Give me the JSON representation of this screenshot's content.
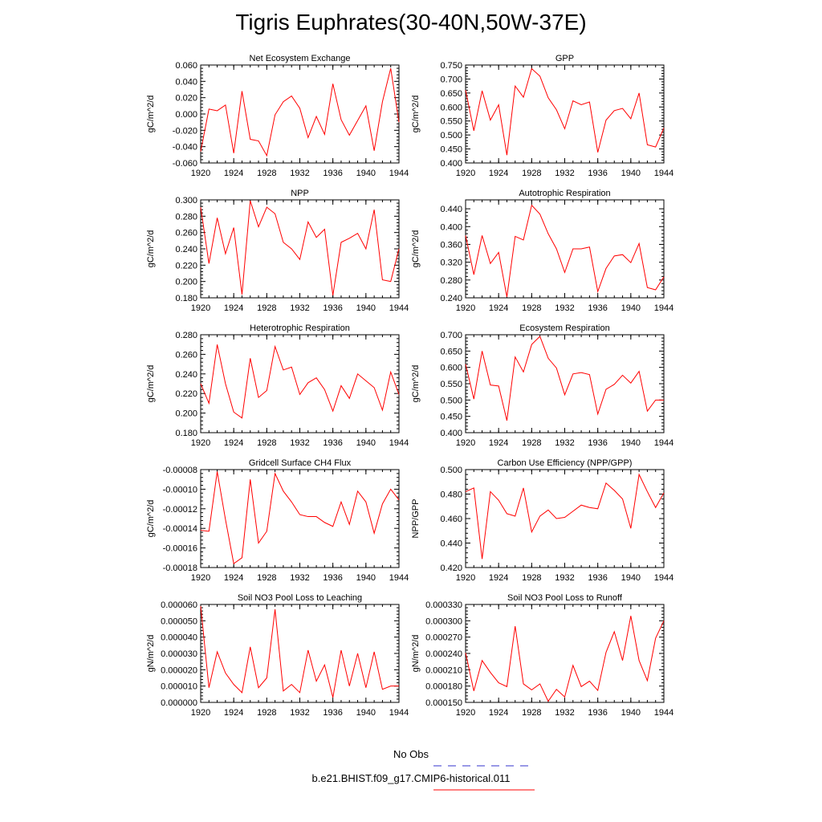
{
  "title": "Tigris Euphrates(30-40N,50W-37E)",
  "legend": {
    "obs_label": "No Obs",
    "obs_color": "#3333cc",
    "model_label": "b.e21.BHIST.f09_g17.CMIP6-historical.011",
    "model_color": "#ff0000"
  },
  "chart_data": [
    {
      "type": "line",
      "title": "Net Ecosystem Exchange",
      "ylabel": "gC/m^2/d",
      "xlim": [
        1920,
        1944
      ],
      "ylim": [
        -0.06,
        0.06
      ],
      "xticks": [
        "1920",
        "1924",
        "1928",
        "1932",
        "1936",
        "1940",
        "1944"
      ],
      "yticks": [
        "-0.060",
        "-0.040",
        "-0.020",
        "0.000",
        "0.020",
        "0.040",
        "0.060"
      ],
      "x": [
        1920,
        1921,
        1922,
        1923,
        1924,
        1925,
        1926,
        1927,
        1928,
        1929,
        1930,
        1931,
        1932,
        1933,
        1934,
        1935,
        1936,
        1937,
        1938,
        1939,
        1940,
        1941,
        1942,
        1943,
        1944
      ],
      "series": [
        {
          "values": [
            -0.046,
            0.006,
            0.004,
            0.011,
            -0.048,
            0.028,
            -0.031,
            -0.033,
            -0.051,
            -0.001,
            0.015,
            0.022,
            0.007,
            -0.029,
            -0.003,
            -0.025,
            0.037,
            -0.007,
            -0.026,
            -0.008,
            0.01,
            -0.045,
            0.015,
            0.056,
            -0.01
          ]
        }
      ]
    },
    {
      "type": "line",
      "title": "GPP",
      "ylabel": "gC/m^2/d",
      "xlim": [
        1920,
        1944
      ],
      "ylim": [
        0.4,
        0.75
      ],
      "xticks": [
        "1920",
        "1924",
        "1928",
        "1932",
        "1936",
        "1940",
        "1944"
      ],
      "yticks": [
        "0.400",
        "0.450",
        "0.500",
        "0.550",
        "0.600",
        "0.650",
        "0.700",
        "0.750"
      ],
      "x": [
        1920,
        1921,
        1922,
        1923,
        1924,
        1925,
        1926,
        1927,
        1928,
        1929,
        1930,
        1931,
        1932,
        1933,
        1934,
        1935,
        1936,
        1937,
        1938,
        1939,
        1940,
        1941,
        1942,
        1943,
        1944
      ],
      "series": [
        {
          "values": [
            0.66,
            0.515,
            0.658,
            0.553,
            0.608,
            0.428,
            0.675,
            0.635,
            0.737,
            0.71,
            0.633,
            0.59,
            0.522,
            0.622,
            0.608,
            0.618,
            0.438,
            0.553,
            0.587,
            0.595,
            0.558,
            0.65,
            0.465,
            0.457,
            0.525
          ]
        }
      ]
    },
    {
      "type": "line",
      "title": "NPP",
      "ylabel": "gC/m^2/d",
      "xlim": [
        1920,
        1944
      ],
      "ylim": [
        0.18,
        0.3
      ],
      "xticks": [
        "1920",
        "1924",
        "1928",
        "1932",
        "1936",
        "1940",
        "1944"
      ],
      "yticks": [
        "0.180",
        "0.200",
        "0.220",
        "0.240",
        "0.260",
        "0.280",
        "0.300"
      ],
      "x": [
        1920,
        1921,
        1922,
        1923,
        1924,
        1925,
        1926,
        1927,
        1928,
        1929,
        1930,
        1931,
        1932,
        1933,
        1934,
        1935,
        1936,
        1937,
        1938,
        1939,
        1940,
        1941,
        1942,
        1943,
        1944
      ],
      "series": [
        {
          "values": [
            0.291,
            0.222,
            0.278,
            0.234,
            0.266,
            0.184,
            0.299,
            0.267,
            0.291,
            0.283,
            0.248,
            0.24,
            0.227,
            0.273,
            0.254,
            0.264,
            0.183,
            0.248,
            0.253,
            0.259,
            0.24,
            0.288,
            0.202,
            0.2,
            0.24
          ]
        }
      ]
    },
    {
      "type": "line",
      "title": "Autotrophic Respiration",
      "ylabel": "gC/m^2/d",
      "xlim": [
        1920,
        1944
      ],
      "ylim": [
        0.24,
        0.46
      ],
      "xticks": [
        "1920",
        "1924",
        "1928",
        "1932",
        "1936",
        "1940",
        "1944"
      ],
      "yticks": [
        "0.240",
        "0.280",
        "0.320",
        "0.360",
        "0.400",
        "0.440"
      ],
      "x": [
        1920,
        1921,
        1922,
        1923,
        1924,
        1925,
        1926,
        1927,
        1928,
        1929,
        1930,
        1931,
        1932,
        1933,
        1934,
        1935,
        1936,
        1937,
        1938,
        1939,
        1940,
        1941,
        1942,
        1943,
        1944
      ],
      "series": [
        {
          "values": [
            0.38,
            0.292,
            0.38,
            0.317,
            0.342,
            0.242,
            0.378,
            0.37,
            0.448,
            0.428,
            0.384,
            0.35,
            0.297,
            0.35,
            0.35,
            0.354,
            0.254,
            0.306,
            0.334,
            0.337,
            0.319,
            0.362,
            0.263,
            0.258,
            0.287
          ]
        }
      ]
    },
    {
      "type": "line",
      "title": "Heterotrophic Respiration",
      "ylabel": "gC/m^2/d",
      "xlim": [
        1920,
        1944
      ],
      "ylim": [
        0.18,
        0.28
      ],
      "xticks": [
        "1920",
        "1924",
        "1928",
        "1932",
        "1936",
        "1940",
        "1944"
      ],
      "yticks": [
        "0.180",
        "0.200",
        "0.220",
        "0.240",
        "0.260",
        "0.280"
      ],
      "x": [
        1920,
        1921,
        1922,
        1923,
        1924,
        1925,
        1926,
        1927,
        1928,
        1929,
        1930,
        1931,
        1932,
        1933,
        1934,
        1935,
        1936,
        1937,
        1938,
        1939,
        1940,
        1941,
        1942,
        1943,
        1944
      ],
      "series": [
        {
          "values": [
            0.23,
            0.21,
            0.27,
            0.23,
            0.201,
            0.195,
            0.256,
            0.216,
            0.223,
            0.268,
            0.244,
            0.247,
            0.219,
            0.231,
            0.236,
            0.224,
            0.202,
            0.228,
            0.215,
            0.24,
            0.233,
            0.226,
            0.203,
            0.242,
            0.219
          ]
        }
      ]
    },
    {
      "type": "line",
      "title": "Ecosystem Respiration",
      "ylabel": "gC/m^2/d",
      "xlim": [
        1920,
        1944
      ],
      "ylim": [
        0.4,
        0.7
      ],
      "xticks": [
        "1920",
        "1924",
        "1928",
        "1932",
        "1936",
        "1940",
        "1944"
      ],
      "yticks": [
        "0.400",
        "0.450",
        "0.500",
        "0.550",
        "0.600",
        "0.650",
        "0.700"
      ],
      "x": [
        1920,
        1921,
        1922,
        1923,
        1924,
        1925,
        1926,
        1927,
        1928,
        1929,
        1930,
        1931,
        1932,
        1933,
        1934,
        1935,
        1936,
        1937,
        1938,
        1939,
        1940,
        1941,
        1942,
        1943,
        1944
      ],
      "series": [
        {
          "values": [
            0.61,
            0.503,
            0.65,
            0.546,
            0.543,
            0.437,
            0.632,
            0.586,
            0.67,
            0.695,
            0.628,
            0.598,
            0.516,
            0.58,
            0.584,
            0.578,
            0.457,
            0.533,
            0.548,
            0.576,
            0.552,
            0.588,
            0.466,
            0.5,
            0.5
          ]
        }
      ]
    },
    {
      "type": "line",
      "title": "Gridcell Surface CH4 Flux",
      "ylabel": "gC/m^2/d",
      "xlim": [
        1920,
        1944
      ],
      "ylim": [
        -0.00018,
        -8e-05
      ],
      "xticks": [
        "1920",
        "1924",
        "1928",
        "1932",
        "1936",
        "1940",
        "1944"
      ],
      "yticks": [
        "-0.00018",
        "-0.00016",
        "-0.00014",
        "-0.00012",
        "-0.00010",
        "-0.00008"
      ],
      "x": [
        1920,
        1921,
        1922,
        1923,
        1924,
        1925,
        1926,
        1927,
        1928,
        1929,
        1930,
        1931,
        1932,
        1933,
        1934,
        1935,
        1936,
        1937,
        1938,
        1939,
        1940,
        1941,
        1942,
        1943,
        1944
      ],
      "series": [
        {
          "values": [
            -0.000142,
            -0.000143,
            -8.2e-05,
            -0.000131,
            -0.000176,
            -0.00017,
            -9e-05,
            -0.000155,
            -0.000143,
            -8.4e-05,
            -0.000102,
            -0.000113,
            -0.000126,
            -0.000128,
            -0.000128,
            -0.000134,
            -0.000138,
            -0.000113,
            -0.000136,
            -0.000102,
            -0.000113,
            -0.000145,
            -0.000115,
            -0.0001,
            -0.000111
          ]
        }
      ]
    },
    {
      "type": "line",
      "title": "Carbon Use Efficiency (NPP/GPP)",
      "ylabel": "NPP/GPP",
      "xlim": [
        1920,
        1944
      ],
      "ylim": [
        0.42,
        0.5
      ],
      "xticks": [
        "1920",
        "1924",
        "1928",
        "1932",
        "1936",
        "1940",
        "1944"
      ],
      "yticks": [
        "0.420",
        "0.440",
        "0.460",
        "0.480",
        "0.500"
      ],
      "x": [
        1920,
        1921,
        1922,
        1923,
        1924,
        1925,
        1926,
        1927,
        1928,
        1929,
        1930,
        1931,
        1932,
        1933,
        1934,
        1935,
        1936,
        1937,
        1938,
        1939,
        1940,
        1941,
        1942,
        1943,
        1944
      ],
      "series": [
        {
          "values": [
            0.482,
            0.485,
            0.427,
            0.482,
            0.475,
            0.464,
            0.462,
            0.485,
            0.449,
            0.462,
            0.467,
            0.46,
            0.461,
            0.466,
            0.471,
            0.469,
            0.468,
            0.489,
            0.483,
            0.476,
            0.452,
            0.496,
            0.482,
            0.469,
            0.481
          ]
        }
      ]
    },
    {
      "type": "line",
      "title": "Soil NO3 Pool Loss to Leaching",
      "ylabel": "gN/m^2/d",
      "xlim": [
        1920,
        1944
      ],
      "ylim": [
        0.0,
        6e-05
      ],
      "xticks": [
        "1920",
        "1924",
        "1928",
        "1932",
        "1936",
        "1940",
        "1944"
      ],
      "yticks": [
        "0.000000",
        "0.000010",
        "0.000020",
        "0.000030",
        "0.000040",
        "0.000050",
        "0.000060"
      ],
      "x": [
        1920,
        1921,
        1922,
        1923,
        1924,
        1925,
        1926,
        1927,
        1928,
        1929,
        1930,
        1931,
        1932,
        1933,
        1934,
        1935,
        1936,
        1937,
        1938,
        1939,
        1940,
        1941,
        1942,
        1943,
        1944
      ],
      "series": [
        {
          "values": [
            5.9e-05,
            9e-06,
            3.1e-05,
            1.8e-05,
            1.1e-05,
            6e-06,
            3.4e-05,
            9e-06,
            1.5e-05,
            5.7e-05,
            7e-06,
            1.1e-05,
            6e-06,
            3.2e-05,
            1.3e-05,
            2.3e-05,
            3e-06,
            3.2e-05,
            1e-05,
            3e-05,
            9e-06,
            3.1e-05,
            8e-06,
            1e-05,
            1e-05
          ]
        }
      ]
    },
    {
      "type": "line",
      "title": "Soil NO3 Pool Loss to Runoff",
      "ylabel": "gN/m^2/d",
      "xlim": [
        1920,
        1944
      ],
      "ylim": [
        0.00015,
        0.00033
      ],
      "xticks": [
        "1920",
        "1924",
        "1928",
        "1932",
        "1936",
        "1940",
        "1944"
      ],
      "yticks": [
        "0.000150",
        "0.000180",
        "0.000210",
        "0.000240",
        "0.000270",
        "0.000300",
        "0.000330"
      ],
      "x": [
        1920,
        1921,
        1922,
        1923,
        1924,
        1925,
        1926,
        1927,
        1928,
        1929,
        1930,
        1931,
        1932,
        1933,
        1934,
        1935,
        1936,
        1937,
        1938,
        1939,
        1940,
        1941,
        1942,
        1943,
        1944
      ],
      "series": [
        {
          "values": [
            0.000241,
            0.000171,
            0.000227,
            0.000205,
            0.000186,
            0.000179,
            0.00029,
            0.000184,
            0.000173,
            0.000184,
            0.000152,
            0.000174,
            0.00016,
            0.000218,
            0.000179,
            0.000189,
            0.000172,
            0.000242,
            0.00028,
            0.000227,
            0.000309,
            0.000227,
            0.00019,
            0.000268,
            0.0003
          ]
        }
      ]
    }
  ]
}
